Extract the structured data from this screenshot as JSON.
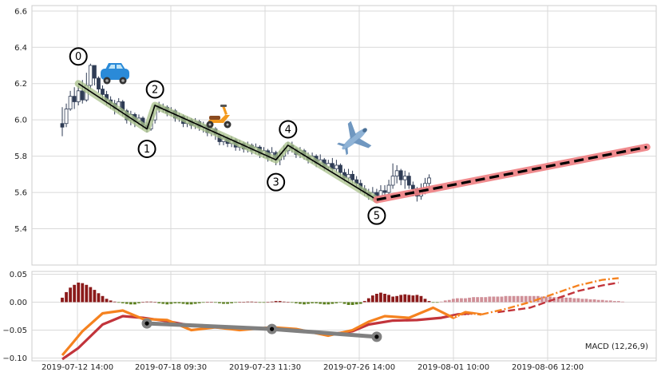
{
  "chart_data": [
    {
      "type": "candlestick",
      "panel": "price",
      "ylim": [
        5.2,
        6.63
      ],
      "y_ticks": [
        "6.6",
        "6.4",
        "6.2",
        "6.0",
        "5.8",
        "5.6",
        "5.4"
      ],
      "x_ticks": [
        "2019-07-12 14:00",
        "2019-07-18 09:30",
        "2019-07-23 11:30",
        "2019-07-26 14:00",
        "2019-08-01 10:00",
        "2019-08-06 12:00"
      ],
      "grid": true,
      "candles": [
        [
          5.98,
          5.96,
          6.07,
          5.91
        ],
        [
          5.98,
          6.06,
          6.09,
          5.96
        ],
        [
          6.06,
          6.13,
          6.16,
          6.05
        ],
        [
          6.13,
          6.1,
          6.18,
          6.06
        ],
        [
          6.1,
          6.16,
          6.19,
          6.08
        ],
        [
          6.16,
          6.11,
          6.22,
          6.09
        ],
        [
          6.11,
          6.19,
          6.26,
          6.1
        ],
        [
          6.19,
          6.3,
          6.31,
          6.17
        ],
        [
          6.3,
          6.23,
          6.3,
          6.19
        ],
        [
          6.23,
          6.17,
          6.24,
          6.15
        ],
        [
          6.17,
          6.14,
          6.19,
          6.11
        ],
        [
          6.14,
          6.11,
          6.16,
          6.08
        ],
        [
          6.11,
          6.09,
          6.13,
          6.06
        ],
        [
          6.09,
          6.06,
          6.11,
          6.03
        ],
        [
          6.06,
          6.1,
          6.12,
          6.04
        ],
        [
          6.1,
          6.05,
          6.11,
          6.02
        ],
        [
          6.05,
          6.0,
          6.06,
          5.98
        ],
        [
          6.0,
          6.03,
          6.05,
          5.97
        ],
        [
          6.03,
          5.99,
          6.04,
          5.96
        ],
        [
          5.99,
          6.01,
          6.03,
          5.97
        ],
        [
          6.01,
          5.97,
          6.02,
          5.95
        ],
        [
          5.97,
          5.95,
          5.99,
          5.93
        ],
        [
          5.95,
          6.0,
          6.02,
          5.94
        ],
        [
          6.0,
          6.08,
          6.09,
          5.98
        ],
        [
          6.08,
          6.06,
          6.1,
          6.04
        ],
        [
          6.06,
          6.07,
          6.09,
          6.04
        ],
        [
          6.07,
          6.04,
          6.08,
          6.02
        ],
        [
          6.04,
          6.05,
          6.07,
          6.02
        ],
        [
          6.05,
          6.01,
          6.06,
          5.99
        ],
        [
          6.01,
          6.02,
          6.04,
          5.99
        ],
        [
          6.02,
          5.98,
          6.03,
          5.96
        ],
        [
          5.98,
          6.0,
          6.02,
          5.96
        ],
        [
          6.0,
          5.97,
          6.01,
          5.95
        ],
        [
          5.97,
          5.99,
          6.01,
          5.95
        ],
        [
          5.99,
          5.96,
          6.0,
          5.94
        ],
        [
          5.96,
          5.97,
          5.99,
          5.93
        ],
        [
          5.97,
          5.93,
          5.98,
          5.91
        ],
        [
          5.93,
          5.95,
          5.98,
          5.91
        ],
        [
          5.95,
          5.92,
          5.96,
          5.89
        ],
        [
          5.92,
          5.88,
          5.93,
          5.86
        ],
        [
          5.88,
          5.9,
          5.92,
          5.86
        ],
        [
          5.9,
          5.87,
          5.91,
          5.85
        ],
        [
          5.87,
          5.89,
          5.91,
          5.85
        ],
        [
          5.89,
          5.85,
          5.9,
          5.83
        ],
        [
          5.85,
          5.87,
          5.89,
          5.83
        ],
        [
          5.87,
          5.84,
          5.88,
          5.82
        ],
        [
          5.84,
          5.86,
          5.88,
          5.82
        ],
        [
          5.86,
          5.83,
          5.87,
          5.81
        ],
        [
          5.83,
          5.85,
          5.87,
          5.81
        ],
        [
          5.85,
          5.81,
          5.86,
          5.79
        ],
        [
          5.81,
          5.83,
          5.85,
          5.79
        ],
        [
          5.83,
          5.79,
          5.84,
          5.77
        ],
        [
          5.79,
          5.82,
          5.85,
          5.77
        ],
        [
          5.82,
          5.78,
          5.83,
          5.75
        ],
        [
          5.78,
          5.8,
          5.83,
          5.75
        ],
        [
          5.8,
          5.83,
          5.86,
          5.78
        ],
        [
          5.83,
          5.86,
          5.88,
          5.81
        ],
        [
          5.86,
          5.84,
          5.88,
          5.82
        ],
        [
          5.84,
          5.81,
          5.85,
          5.79
        ],
        [
          5.81,
          5.83,
          5.85,
          5.79
        ],
        [
          5.83,
          5.8,
          5.84,
          5.78
        ],
        [
          5.8,
          5.78,
          5.82,
          5.76
        ],
        [
          5.78,
          5.8,
          5.82,
          5.76
        ],
        [
          5.8,
          5.76,
          5.81,
          5.74
        ],
        [
          5.76,
          5.78,
          5.81,
          5.74
        ],
        [
          5.78,
          5.74,
          5.79,
          5.72
        ],
        [
          5.74,
          5.76,
          5.78,
          5.72
        ],
        [
          5.76,
          5.73,
          5.79,
          5.71
        ],
        [
          5.73,
          5.75,
          5.78,
          5.71
        ],
        [
          5.75,
          5.71,
          5.76,
          5.69
        ],
        [
          5.71,
          5.68,
          5.73,
          5.66
        ],
        [
          5.68,
          5.7,
          5.73,
          5.66
        ],
        [
          5.7,
          5.67,
          5.72,
          5.65
        ],
        [
          5.67,
          5.65,
          5.69,
          5.63
        ],
        [
          5.65,
          5.62,
          5.67,
          5.6
        ],
        [
          5.62,
          5.6,
          5.64,
          5.58
        ],
        [
          5.6,
          5.58,
          5.62,
          5.56
        ],
        [
          5.58,
          5.6,
          5.63,
          5.56
        ],
        [
          5.6,
          5.58,
          5.62,
          5.55
        ],
        [
          5.58,
          5.61,
          5.64,
          5.56
        ],
        [
          5.61,
          5.6,
          5.64,
          5.58
        ],
        [
          5.6,
          5.64,
          5.67,
          5.59
        ],
        [
          5.64,
          5.69,
          5.76,
          5.62
        ],
        [
          5.69,
          5.72,
          5.75,
          5.65
        ],
        [
          5.72,
          5.67,
          5.73,
          5.64
        ],
        [
          5.67,
          5.69,
          5.72,
          5.62
        ],
        [
          5.69,
          5.64,
          5.71,
          5.62
        ],
        [
          5.64,
          5.62,
          5.66,
          5.58
        ],
        [
          5.62,
          5.58,
          5.63,
          5.55
        ],
        [
          5.58,
          5.62,
          5.65,
          5.56
        ],
        [
          5.62,
          5.65,
          5.68,
          5.59
        ],
        [
          5.65,
          5.68,
          5.7,
          5.61
        ]
      ],
      "zigzag_pivots": [
        {
          "label": "0",
          "index": 4,
          "value": 6.2
        },
        {
          "label": "1",
          "index": 21,
          "value": 5.95
        },
        {
          "label": "2",
          "index": 23,
          "value": 6.08
        },
        {
          "label": "3",
          "index": 53,
          "value": 5.78
        },
        {
          "label": "4",
          "index": 56,
          "value": 5.86
        },
        {
          "label": "5",
          "index": 78,
          "value": 5.56
        }
      ],
      "forecast": {
        "start_index": 78,
        "start_value": 5.56,
        "end_index": 145,
        "end_value": 5.85
      },
      "icons": [
        "car-icon",
        "scooter-icon",
        "airplane-icon"
      ]
    },
    {
      "type": "macd",
      "panel": "indicator",
      "label": "MACD (12,26,9)",
      "ylim": [
        -0.105,
        0.055
      ],
      "y_ticks": [
        "0.05",
        "0.00",
        "−0.05",
        "−0.10"
      ],
      "histogram": [
        0.008,
        0.018,
        0.026,
        0.031,
        0.035,
        0.034,
        0.031,
        0.027,
        0.022,
        0.016,
        0.011,
        0.006,
        0.003,
        0.001,
        -0.001,
        -0.002,
        -0.003,
        -0.004,
        -0.004,
        -0.002,
        0.0,
        0.001,
        0.001,
        0.0,
        -0.002,
        -0.003,
        -0.004,
        -0.003,
        -0.002,
        -0.002,
        -0.003,
        -0.004,
        -0.004,
        -0.003,
        -0.002,
        -0.001,
        0.0,
        0.0,
        -0.001,
        -0.002,
        -0.003,
        -0.003,
        -0.002,
        -0.001,
        0.0,
        0.0,
        0.001,
        0.001,
        0.0,
        -0.001,
        -0.001,
        0.0,
        0.001,
        0.002,
        0.002,
        0.001,
        0.0,
        -0.001,
        -0.002,
        -0.003,
        -0.004,
        -0.003,
        -0.002,
        -0.002,
        -0.003,
        -0.004,
        -0.004,
        -0.003,
        -0.002,
        -0.001,
        -0.003,
        -0.005,
        -0.005,
        -0.004,
        -0.003,
        0.002,
        0.007,
        0.012,
        0.015,
        0.017,
        0.015,
        0.013,
        0.01,
        0.011,
        0.013,
        0.014,
        0.013,
        0.012,
        0.013,
        0.011,
        0.006,
        0.002,
        -0.001,
        -0.001,
        0.001,
        0.003,
        0.004,
        0.006,
        0.007,
        0.007,
        0.007,
        0.008,
        0.009,
        0.009,
        0.009,
        0.009,
        0.01,
        0.01,
        0.01,
        0.01,
        0.011,
        0.011,
        0.011,
        0.011,
        0.011,
        0.011,
        0.011,
        0.011,
        0.011,
        0.01,
        0.01,
        0.01,
        0.009,
        0.009,
        0.009,
        0.008,
        0.008,
        0.007,
        0.007,
        0.006,
        0.006,
        0.005,
        0.005,
        0.004,
        0.004,
        0.003,
        0.003,
        0.002,
        0.002,
        0.001
      ],
      "macd_line": [
        [
          0,
          -0.095
        ],
        [
          2,
          -0.078
        ],
        [
          5,
          -0.052
        ],
        [
          10,
          -0.02
        ],
        [
          15,
          -0.015
        ],
        [
          20,
          -0.03
        ],
        [
          26,
          -0.032
        ],
        [
          32,
          -0.05
        ],
        [
          38,
          -0.045
        ],
        [
          44,
          -0.05
        ],
        [
          52,
          -0.045
        ],
        [
          58,
          -0.048
        ],
        [
          66,
          -0.06
        ],
        [
          72,
          -0.05
        ],
        [
          76,
          -0.035
        ],
        [
          80,
          -0.025
        ],
        [
          86,
          -0.028
        ],
        [
          92,
          -0.01
        ],
        [
          97,
          -0.028
        ],
        [
          100,
          -0.018
        ],
        [
          104,
          -0.022
        ],
        [
          110,
          -0.012
        ],
        [
          116,
          0.0
        ],
        [
          122,
          0.015
        ],
        [
          128,
          0.03
        ],
        [
          134,
          0.04
        ],
        [
          138,
          0.043
        ]
      ],
      "signal_line": [
        [
          0,
          -0.102
        ],
        [
          4,
          -0.082
        ],
        [
          10,
          -0.04
        ],
        [
          15,
          -0.025
        ],
        [
          20,
          -0.028
        ],
        [
          26,
          -0.034
        ],
        [
          32,
          -0.042
        ],
        [
          38,
          -0.045
        ],
        [
          44,
          -0.048
        ],
        [
          52,
          -0.046
        ],
        [
          58,
          -0.05
        ],
        [
          66,
          -0.058
        ],
        [
          72,
          -0.052
        ],
        [
          76,
          -0.04
        ],
        [
          82,
          -0.033
        ],
        [
          88,
          -0.032
        ],
        [
          94,
          -0.028
        ],
        [
          98,
          -0.022
        ],
        [
          102,
          -0.02
        ],
        [
          108,
          -0.018
        ],
        [
          116,
          -0.01
        ],
        [
          122,
          0.005
        ],
        [
          128,
          0.02
        ],
        [
          134,
          0.03
        ],
        [
          138,
          0.035
        ]
      ],
      "divergence_points": [
        [
          21,
          -0.038
        ],
        [
          52,
          -0.048
        ],
        [
          78,
          -0.062
        ]
      ]
    }
  ],
  "colors": {
    "bull": "#ffffff",
    "bear": "#2f3c55",
    "zigzag": "#000000",
    "zigzag_glow": "#a8c08a",
    "forecast": "#000000",
    "forecast_glow": "#ef7f82",
    "macd": "#f5821f",
    "signal": "#c2343b",
    "hist_up": "#8b1a1a",
    "hist_down": "#5a7f1d",
    "hist_future": "#d09098",
    "divergence": "#808080"
  }
}
